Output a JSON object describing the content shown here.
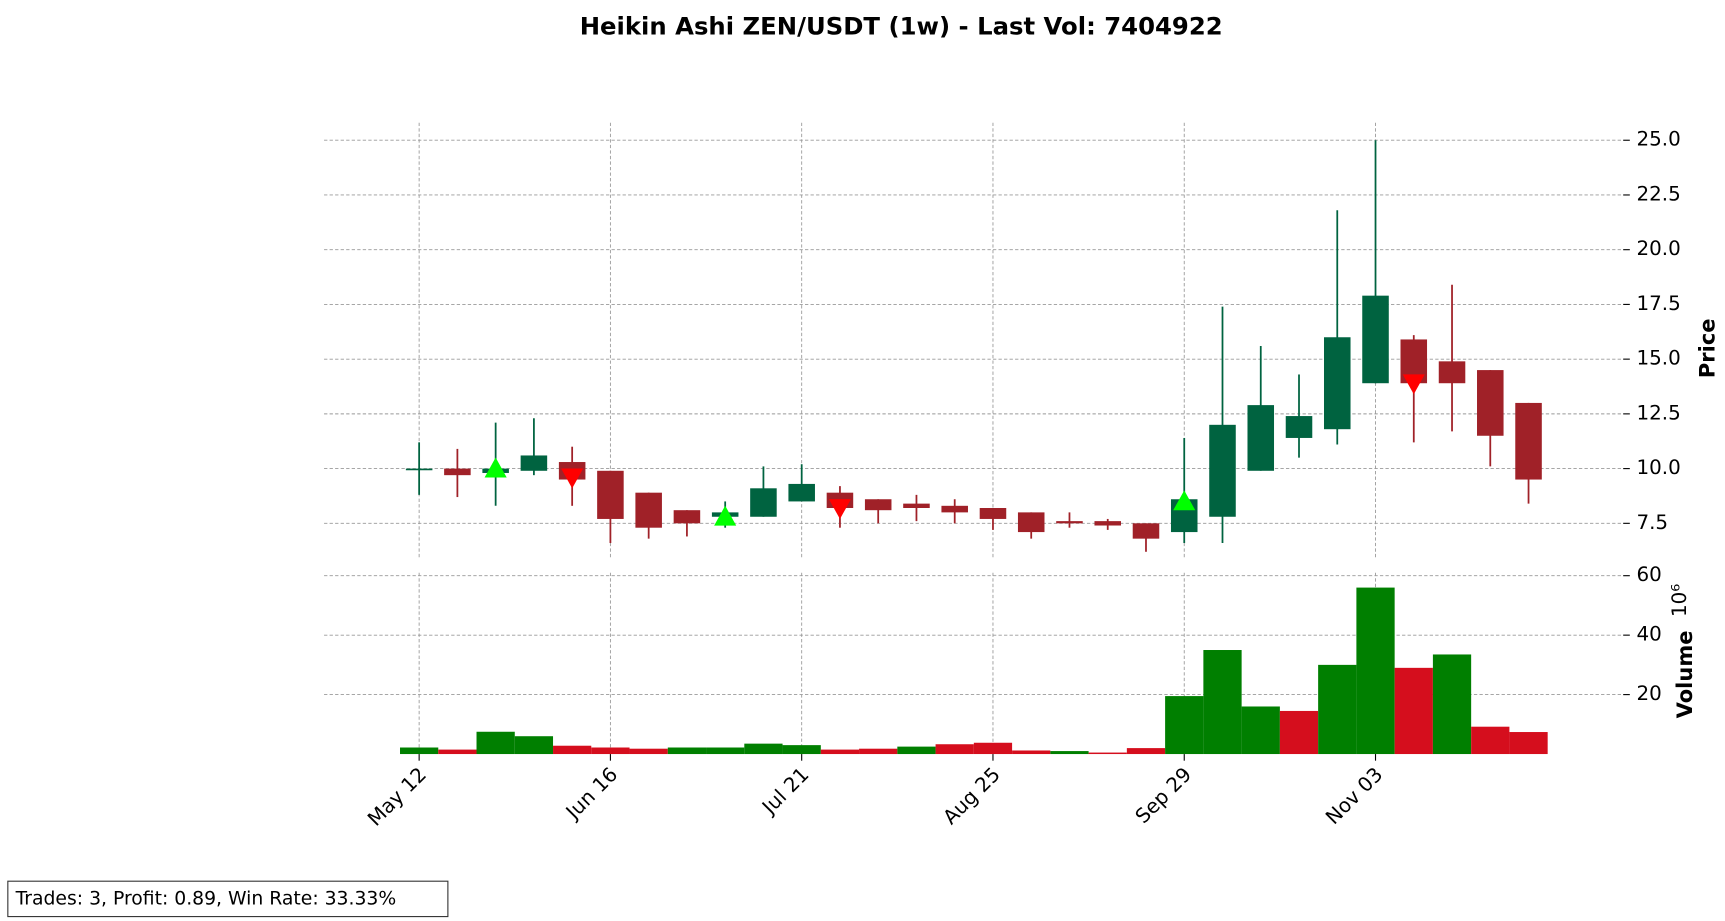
{
  "chart_data": {
    "type": "candlestick",
    "title": "Heikin Ashi ZEN/USDT (1w) - Last Vol: 7404922",
    "categories": [
      "May 12",
      null,
      null,
      null,
      null,
      "Jun 16",
      null,
      null,
      null,
      null,
      "Jul 21",
      null,
      null,
      null,
      null,
      "Aug 25",
      null,
      null,
      null,
      null,
      "Sep 29",
      null,
      null,
      null,
      null,
      "Nov 03",
      null,
      null,
      null,
      null
    ],
    "open": [
      10.0,
      10.0,
      9.8,
      9.9,
      10.3,
      9.9,
      8.9,
      8.1,
      7.8,
      7.8,
      8.5,
      8.9,
      8.6,
      8.4,
      8.3,
      8.2,
      8.0,
      7.6,
      7.6,
      7.5,
      7.1,
      7.8,
      9.9,
      11.4,
      11.8,
      13.9,
      15.9,
      14.9,
      14.5,
      13.0
    ],
    "high": [
      11.2,
      10.9,
      12.1,
      12.3,
      11.0,
      9.9,
      8.9,
      8.1,
      8.5,
      10.1,
      10.2,
      9.2,
      8.6,
      8.8,
      8.6,
      8.2,
      8.0,
      8.0,
      7.7,
      7.5,
      11.4,
      17.4,
      15.6,
      14.3,
      21.8,
      25.0,
      16.1,
      18.4,
      14.5,
      13.0
    ],
    "low": [
      8.8,
      8.7,
      8.3,
      9.7,
      8.3,
      6.6,
      6.8,
      6.9,
      7.3,
      7.8,
      8.5,
      7.3,
      7.5,
      7.6,
      7.5,
      7.2,
      6.8,
      7.3,
      7.2,
      6.2,
      6.6,
      6.6,
      9.9,
      10.5,
      11.1,
      13.9,
      11.2,
      11.7,
      10.1,
      8.4
    ],
    "close": [
      10.0,
      9.7,
      10.0,
      10.6,
      9.5,
      7.7,
      7.3,
      7.5,
      8.0,
      9.1,
      9.3,
      8.2,
      8.1,
      8.2,
      8.0,
      7.7,
      7.1,
      7.5,
      7.4,
      6.8,
      8.6,
      12.0,
      12.9,
      12.4,
      16.0,
      17.9,
      13.9,
      13.9,
      11.5,
      9.5
    ],
    "up_color": "#006340",
    "down_color": "#a02128",
    "ylim": [
      5.9,
      25.8
    ],
    "yticks": [
      7.5,
      {
        "value": 10,
        "label": "10.0"
      },
      12.5,
      {
        "value": 15,
        "label": "15.0"
      },
      17.5,
      {
        "value": 20,
        "label": "20.0"
      },
      22.5,
      {
        "value": 25,
        "label": "25.0"
      }
    ],
    "ylabel": "Price",
    "grid": true,
    "buy_markers": {
      "color": "#00ff00",
      "values": [
        null,
        null,
        10.0,
        null,
        null,
        null,
        null,
        null,
        7.8,
        null,
        null,
        null,
        null,
        null,
        null,
        null,
        null,
        null,
        null,
        null,
        8.5,
        null,
        null,
        null,
        null,
        null,
        null,
        null,
        null,
        null
      ]
    },
    "sell_markers": {
      "color": "#ff0000",
      "values": [
        null,
        null,
        null,
        null,
        9.6,
        null,
        null,
        null,
        null,
        null,
        null,
        8.2,
        null,
        null,
        null,
        null,
        null,
        null,
        null,
        null,
        null,
        null,
        null,
        null,
        null,
        null,
        13.9,
        null,
        null,
        null
      ]
    },
    "volume": {
      "values": [
        2.2,
        1.5,
        7.5,
        6.0,
        2.8,
        2.2,
        1.8,
        2.2,
        2.2,
        3.5,
        3.0,
        1.5,
        1.8,
        2.5,
        3.3,
        3.8,
        1.2,
        1.0,
        0.5,
        2.0,
        19.5,
        35.0,
        16.0,
        14.5,
        30.0,
        56.0,
        29.0,
        33.5,
        9.2,
        7.404922
      ],
      "colors": [
        "#007f00",
        "#d50e1d",
        "#007f00",
        "#007f00",
        "#d50e1d",
        "#d50e1d",
        "#d50e1d",
        "#007f00",
        "#007f00",
        "#007f00",
        "#007f00",
        "#d50e1d",
        "#d50e1d",
        "#007f00",
        "#d50e1d",
        "#d50e1d",
        "#d50e1d",
        "#007f00",
        "#d50e1d",
        "#d50e1d",
        "#007f00",
        "#007f00",
        "#007f00",
        "#d50e1d",
        "#007f00",
        "#007f00",
        "#d50e1d",
        "#007f00",
        "#d50e1d",
        "#d50e1d"
      ],
      "ylim": [
        0,
        61
      ],
      "yticks": [
        20,
        40,
        60
      ],
      "ylabel": "Volume",
      "scale_label": "10⁶"
    }
  },
  "annotation": "Trades: 3, Profit: 0.89, Win Rate: 33.33%"
}
